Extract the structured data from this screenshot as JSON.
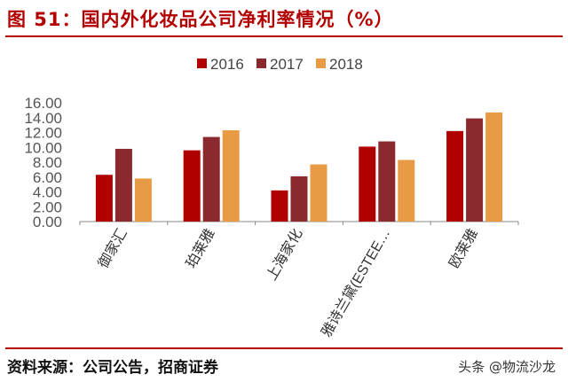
{
  "title": "图 51：国内外化妆品公司净利率情况（%）",
  "source": "资料来源：公司公告，招商证券",
  "watermark": "头条 @物流沙龙",
  "chart_data": {
    "type": "bar",
    "title": "",
    "categories": [
      "御家汇",
      "珀莱雅",
      "上海家化",
      "雅诗兰黛(ESTEE…",
      "欧莱雅"
    ],
    "series": [
      {
        "name": "2016",
        "color": "#b00000",
        "values": [
          6.3,
          9.6,
          4.2,
          10.1,
          12.2
        ]
      },
      {
        "name": "2017",
        "color": "#8b2a2e",
        "values": [
          9.8,
          11.4,
          6.1,
          10.8,
          13.9
        ]
      },
      {
        "name": "2018",
        "color": "#e99a45",
        "values": [
          5.8,
          12.3,
          7.7,
          8.3,
          14.7
        ]
      }
    ],
    "ylim": [
      0,
      16
    ],
    "yticks": [
      "0.00",
      "2.00",
      "4.00",
      "6.00",
      "8.00",
      "10.00",
      "12.00",
      "14.00",
      "16.00"
    ],
    "legend": "top",
    "grid": false
  }
}
